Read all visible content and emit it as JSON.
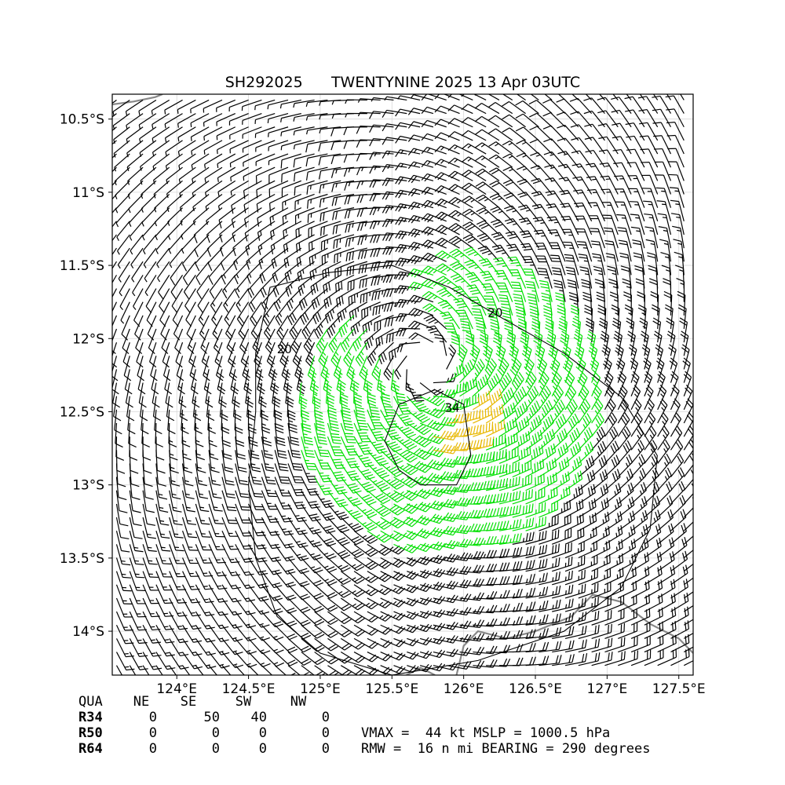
{
  "title": {
    "storm_id": "SH292025",
    "storm_name_time": "TWENTYNINE 2025 13 Apr 03UTC"
  },
  "map": {
    "lon_range": [
      123.55,
      127.6
    ],
    "lat_range": [
      -14.3,
      -10.33
    ],
    "x_ticks": [
      {
        "value": 124.0,
        "label": "124°E"
      },
      {
        "value": 124.5,
        "label": "124.5°E"
      },
      {
        "value": 125.0,
        "label": "125°E"
      },
      {
        "value": 125.5,
        "label": "125.5°E"
      },
      {
        "value": 126.0,
        "label": "126°E"
      },
      {
        "value": 126.5,
        "label": "126.5°E"
      },
      {
        "value": 127.0,
        "label": "127°E"
      },
      {
        "value": 127.5,
        "label": "127.5°E"
      }
    ],
    "y_ticks": [
      {
        "value": -10.5,
        "label": "10.5°S"
      },
      {
        "value": -11.0,
        "label": "11°S"
      },
      {
        "value": -11.5,
        "label": "11.5°S"
      },
      {
        "value": -12.0,
        "label": "12°S"
      },
      {
        "value": -12.5,
        "label": "12.5°S"
      },
      {
        "value": -13.0,
        "label": "13°S"
      },
      {
        "value": -13.5,
        "label": "13.5°S"
      },
      {
        "value": -14.0,
        "label": "14°S"
      }
    ],
    "grid": true,
    "center": {
      "lon": 125.75,
      "lat": -12.18
    },
    "contour_labels": [
      {
        "text": "20",
        "lon": 124.75,
        "lat": -12.1
      },
      {
        "text": "20",
        "lon": 126.22,
        "lat": -11.85
      },
      {
        "text": "34",
        "lon": 125.92,
        "lat": -12.5
      }
    ],
    "colors": {
      "barb_default": "#000000",
      "barb_34kt": "#00e000",
      "barb_50kt": "#e8b800",
      "coastline": "#888888",
      "grid": "#d8d8d8"
    }
  },
  "wind_radii": {
    "headers": [
      "QUA",
      "NE",
      "SE",
      "SW",
      "NW"
    ],
    "rows": [
      {
        "label": "R34",
        "values": [
          "0",
          "50",
          "40",
          "0"
        ]
      },
      {
        "label": "R50",
        "values": [
          "0",
          "0",
          "0",
          "0"
        ]
      },
      {
        "label": "R64",
        "values": [
          "0",
          "0",
          "0",
          "0"
        ]
      }
    ]
  },
  "info": {
    "line1": "VMAX =  44 kt MSLP = 1000.5 hPa",
    "line2": "RMW =  16 n mi BEARING = 290 degrees"
  }
}
